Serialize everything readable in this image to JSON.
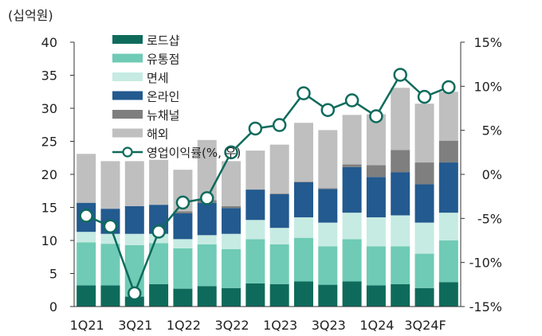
{
  "chart_data": {
    "type": "bar",
    "stacked": true,
    "unit_label": "(십억원)",
    "categories": [
      "1Q21",
      "2Q21",
      "3Q21",
      "4Q21",
      "1Q22",
      "2Q22",
      "3Q22",
      "4Q22",
      "1Q23",
      "2Q23",
      "3Q23",
      "4Q23",
      "1Q24",
      "2Q24",
      "3Q24F",
      "4Q24F"
    ],
    "x_tick_labels": [
      "1Q21",
      "3Q21",
      "1Q22",
      "3Q22",
      "1Q23",
      "3Q23",
      "1Q24",
      "3Q24F"
    ],
    "y_left": {
      "min": 0,
      "max": 40,
      "ticks": [
        "0",
        "5",
        "10",
        "15",
        "20",
        "25",
        "30",
        "35",
        "40"
      ]
    },
    "y_right": {
      "min": -15,
      "max": 15,
      "ticks": [
        "-15%",
        "-10%",
        "-5%",
        "0%",
        "5%",
        "10%",
        "15%"
      ]
    },
    "series": [
      {
        "name": "로드샵",
        "color": "#0e6b5c",
        "values": [
          3.2,
          3.2,
          1.5,
          3.4,
          2.7,
          3.1,
          2.8,
          3.5,
          3.4,
          3.8,
          3.3,
          3.8,
          3.2,
          3.4,
          2.8,
          3.7
        ]
      },
      {
        "name": "유통점",
        "color": "#6fcbb5",
        "values": [
          6.5,
          6.3,
          7.8,
          6.2,
          6.1,
          6.3,
          5.9,
          6.7,
          6.0,
          6.6,
          5.8,
          6.4,
          5.9,
          5.7,
          5.2,
          6.3
        ]
      },
      {
        "name": "면세",
        "color": "#c6ebe3",
        "values": [
          1.6,
          1.5,
          1.7,
          1.4,
          1.4,
          1.4,
          2.3,
          2.9,
          2.5,
          3.1,
          3.6,
          4.0,
          4.4,
          4.7,
          4.7,
          4.2
        ]
      },
      {
        "name": "온라인",
        "color": "#235a8f",
        "values": [
          4.4,
          3.8,
          4.2,
          4.4,
          3.9,
          4.9,
          3.9,
          4.6,
          5.1,
          5.3,
          5.1,
          6.9,
          6.1,
          6.5,
          5.8,
          7.6
        ]
      },
      {
        "name": "뉴채널",
        "color": "#7f7f7f",
        "values": [
          0.0,
          0.0,
          0.0,
          0.0,
          0.3,
          0.4,
          0.3,
          0.0,
          0.1,
          0.1,
          0.1,
          0.4,
          1.8,
          3.4,
          3.3,
          3.3
        ]
      },
      {
        "name": "해외",
        "color": "#bfbfbf",
        "values": [
          7.4,
          7.2,
          6.8,
          6.8,
          6.3,
          9.1,
          6.8,
          5.9,
          7.4,
          8.9,
          8.8,
          7.5,
          7.7,
          9.4,
          8.9,
          7.4
        ]
      }
    ],
    "line": {
      "name": "영업이익률(%, 우)",
      "color": "#0e6b5c",
      "axis": "right",
      "values": [
        -4.7,
        -5.9,
        -13.5,
        -6.5,
        -3.2,
        -2.7,
        2.5,
        5.2,
        5.6,
        9.2,
        7.3,
        8.4,
        6.6,
        11.3,
        8.8,
        9.9
      ]
    }
  }
}
